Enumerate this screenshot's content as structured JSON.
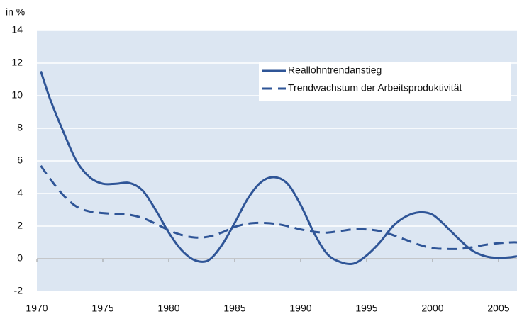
{
  "chart_data": {
    "type": "line",
    "y_label": "in %",
    "x": [
      1970.3,
      1971,
      1972,
      1973,
      1974,
      1975,
      1976,
      1977,
      1978,
      1979,
      1980,
      1981,
      1982,
      1983,
      1984,
      1985,
      1986,
      1987,
      1988,
      1989,
      1990,
      1991,
      1992,
      1993,
      1994,
      1995,
      1996,
      1997,
      1998,
      1999,
      2000,
      2001,
      2002,
      2003,
      2004,
      2005,
      2006,
      2006.4
    ],
    "series": [
      {
        "name": "Reallohntrendanstieg",
        "color": "#2f5597",
        "style": "solid",
        "values": [
          11.5,
          9.8,
          7.8,
          6.0,
          5.0,
          4.6,
          4.6,
          4.65,
          4.2,
          3.0,
          1.6,
          0.5,
          -0.1,
          -0.1,
          0.8,
          2.2,
          3.7,
          4.7,
          5.0,
          4.6,
          3.3,
          1.6,
          0.3,
          -0.2,
          -0.3,
          0.2,
          1.0,
          2.0,
          2.6,
          2.85,
          2.7,
          2.0,
          1.2,
          0.5,
          0.15,
          0.05,
          0.1,
          0.15
        ]
      },
      {
        "name": "Trendwachstum der Arbeitsproduktivität",
        "color": "#2f5597",
        "style": "dashed",
        "values": [
          5.7,
          4.9,
          3.9,
          3.2,
          2.9,
          2.8,
          2.75,
          2.7,
          2.5,
          2.15,
          1.75,
          1.45,
          1.3,
          1.35,
          1.6,
          1.95,
          2.15,
          2.2,
          2.15,
          2.0,
          1.8,
          1.65,
          1.6,
          1.7,
          1.8,
          1.8,
          1.7,
          1.45,
          1.15,
          0.85,
          0.65,
          0.6,
          0.6,
          0.7,
          0.85,
          0.95,
          1.0,
          1.0
        ]
      }
    ],
    "xlim": [
      1970,
      2006.4
    ],
    "xticks": [
      1970,
      1975,
      1980,
      1985,
      1990,
      1995,
      2000,
      2005
    ],
    "ylim": [
      -2,
      14
    ],
    "yticks": [
      -2,
      0,
      2,
      4,
      6,
      8,
      10,
      12,
      14
    ],
    "grid": true,
    "legend": "upper right",
    "plot_background": "#dce6f2"
  }
}
